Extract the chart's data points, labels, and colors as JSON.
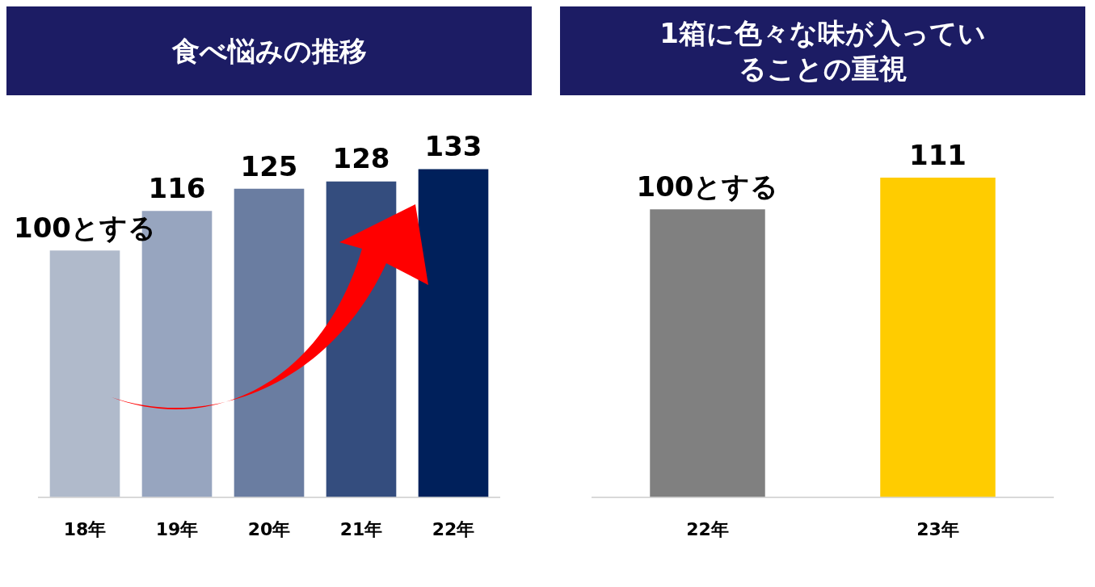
{
  "chart_data": [
    {
      "type": "bar",
      "title": "食べ悩みの推移",
      "categories": [
        "18年",
        "19年",
        "20年",
        "21年",
        "22年"
      ],
      "values": [
        100,
        116,
        125,
        128,
        133
      ],
      "colors": [
        "#b0bacb",
        "#97a5bf",
        "#6a7da1",
        "#344d7e",
        "#00205b"
      ],
      "value_labels": [
        "100とする",
        "116",
        "125",
        "128",
        "133"
      ],
      "tick_labels": "x",
      "grid": false,
      "legend": false
    },
    {
      "type": "bar",
      "title": "1箱に色々な味が入っていることの重視",
      "categories": [
        "22年",
        "23年"
      ],
      "values": [
        100,
        111
      ],
      "colors": [
        "#808080",
        "#ffcc00"
      ],
      "value_labels": [
        "100とする",
        "111"
      ],
      "tick_labels": "x",
      "grid": false,
      "legend": false
    }
  ]
}
